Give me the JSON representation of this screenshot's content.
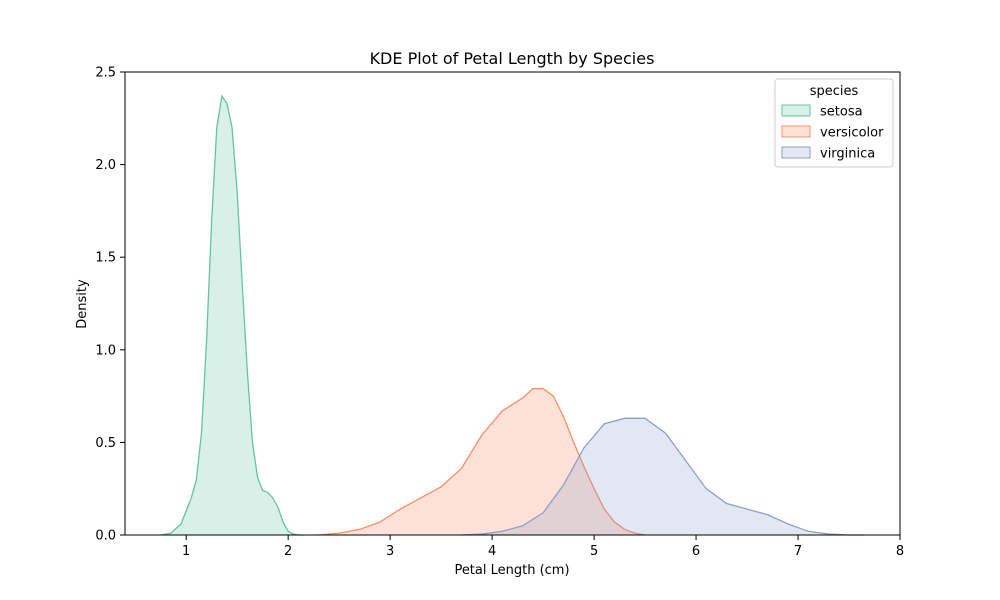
{
  "chart_data": {
    "type": "area",
    "title": "KDE Plot of Petal Length by Species",
    "xlabel": "Petal Length (cm)",
    "ylabel": "Density",
    "xlim": [
      0.4,
      8.0
    ],
    "ylim": [
      0,
      2.5
    ],
    "x_ticks": [
      1,
      2,
      3,
      4,
      5,
      6,
      7,
      8
    ],
    "x_tick_labels": [
      "1",
      "2",
      "3",
      "4",
      "5",
      "6",
      "7",
      "8"
    ],
    "y_ticks": [
      0,
      0.5,
      1.0,
      1.5,
      2.0,
      2.5
    ],
    "y_tick_labels": [
      "0.0",
      "0.5",
      "1.0",
      "1.5",
      "2.0",
      "2.5"
    ],
    "grid": false,
    "legend": {
      "title": "species",
      "placement": "top-right"
    },
    "series": [
      {
        "name": "setosa",
        "color": "#66c2a5",
        "x": [
          0.75,
          0.85,
          0.95,
          1.0,
          1.05,
          1.1,
          1.15,
          1.2,
          1.25,
          1.3,
          1.35,
          1.4,
          1.45,
          1.5,
          1.55,
          1.6,
          1.65,
          1.7,
          1.75,
          1.8,
          1.85,
          1.9,
          1.95,
          2.0,
          2.05,
          2.1,
          2.15
        ],
        "y": [
          0.0,
          0.01,
          0.06,
          0.13,
          0.2,
          0.3,
          0.55,
          1.05,
          1.7,
          2.2,
          2.37,
          2.33,
          2.2,
          1.85,
          1.35,
          0.88,
          0.5,
          0.31,
          0.24,
          0.23,
          0.2,
          0.15,
          0.07,
          0.02,
          0.005,
          0.0,
          0.0
        ]
      },
      {
        "name": "versicolor",
        "color": "#fc8d62",
        "x": [
          2.3,
          2.5,
          2.7,
          2.9,
          3.1,
          3.3,
          3.5,
          3.7,
          3.9,
          4.1,
          4.3,
          4.4,
          4.5,
          4.6,
          4.7,
          4.8,
          4.9,
          5.0,
          5.1,
          5.2,
          5.3,
          5.4,
          5.5
        ],
        "y": [
          0.0,
          0.01,
          0.03,
          0.07,
          0.14,
          0.2,
          0.26,
          0.36,
          0.54,
          0.67,
          0.74,
          0.79,
          0.79,
          0.75,
          0.64,
          0.5,
          0.37,
          0.25,
          0.14,
          0.07,
          0.03,
          0.01,
          0.0
        ]
      },
      {
        "name": "virginica",
        "color": "#8da0cb",
        "x": [
          3.7,
          3.9,
          4.1,
          4.3,
          4.5,
          4.7,
          4.9,
          5.1,
          5.3,
          5.5,
          5.7,
          5.9,
          6.1,
          6.3,
          6.5,
          6.7,
          6.9,
          7.1,
          7.3,
          7.5,
          7.65
        ],
        "y": [
          0.0,
          0.005,
          0.02,
          0.05,
          0.12,
          0.27,
          0.47,
          0.6,
          0.63,
          0.63,
          0.55,
          0.4,
          0.25,
          0.17,
          0.14,
          0.11,
          0.06,
          0.02,
          0.005,
          0.0,
          0.0
        ]
      }
    ]
  }
}
